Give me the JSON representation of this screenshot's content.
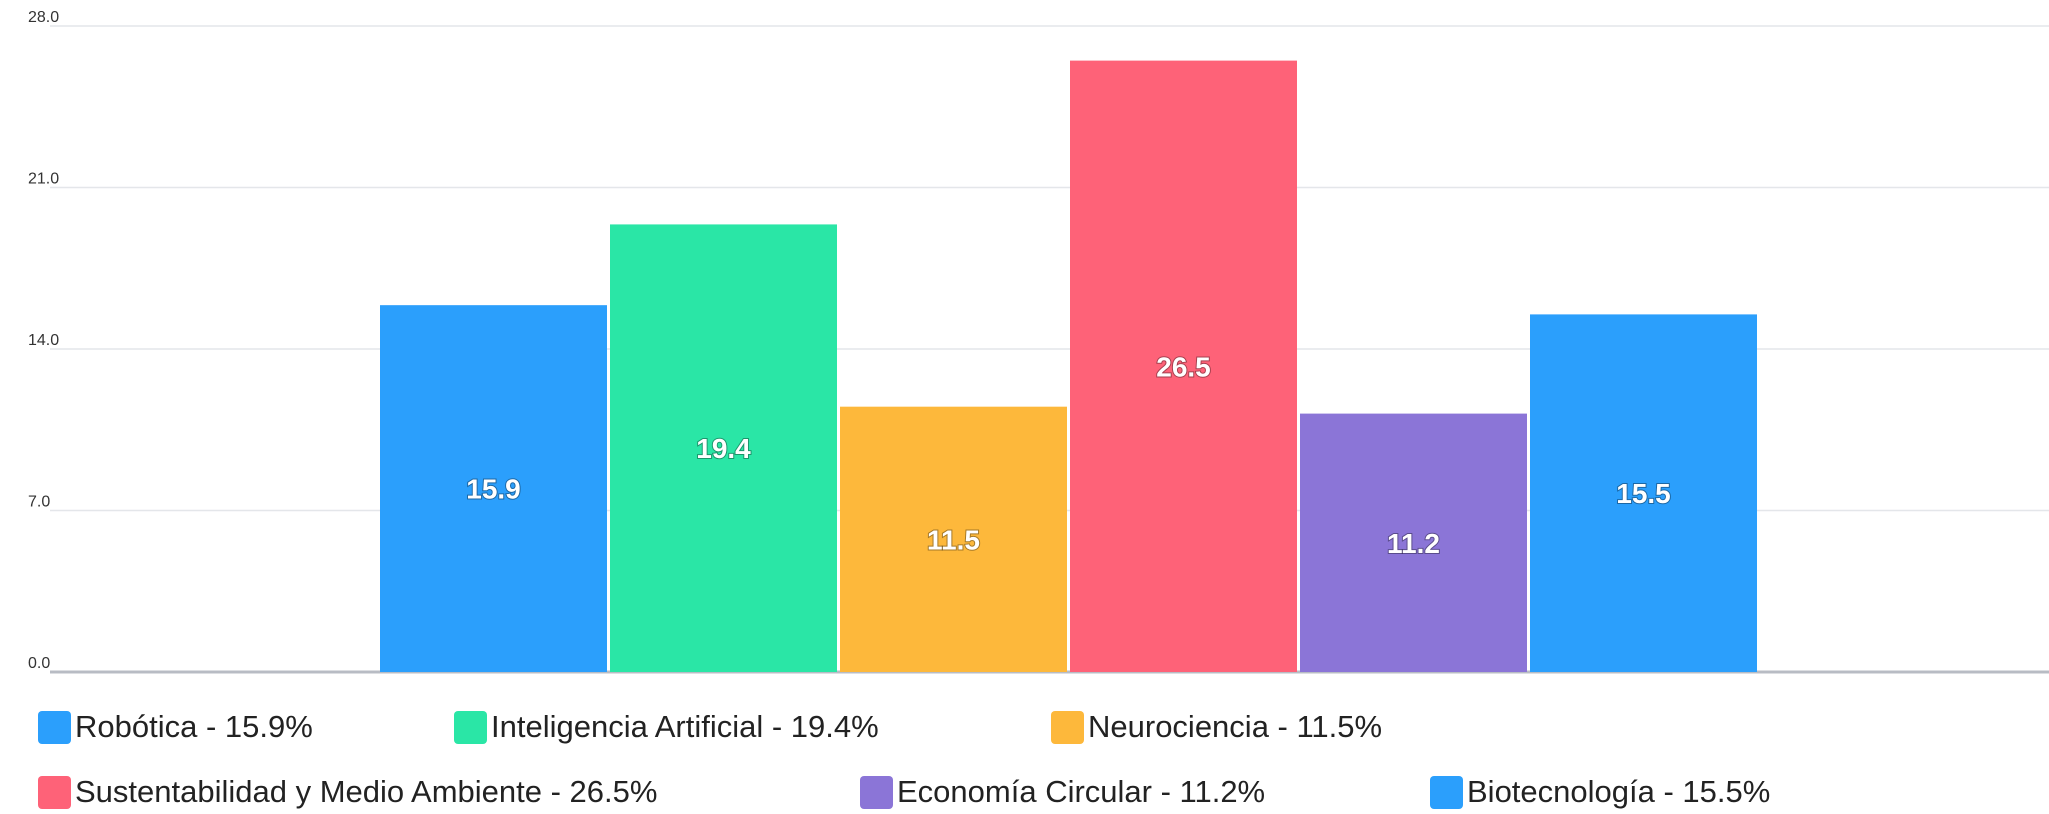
{
  "chart_data": {
    "type": "bar",
    "categories": [
      "Robótica",
      "Inteligencia Artificial",
      "Neurociencia",
      "Sustentabilidad y Medio Ambiente",
      "Economía Circular",
      "Biotecnología"
    ],
    "values": [
      15.9,
      19.4,
      11.5,
      26.5,
      11.2,
      15.5
    ],
    "value_labels": [
      "15.9",
      "19.4",
      "11.5",
      "26.5",
      "11.2",
      "15.5"
    ],
    "colors": [
      "#2b9ffc",
      "#2ae6a6",
      "#fdb83b",
      "#fe6278",
      "#8b75d7",
      "#2b9ffc"
    ],
    "ylim": [
      0,
      28
    ],
    "yticks": [
      "0.0",
      "7.0",
      "14.0",
      "21.0",
      "28.0"
    ],
    "grid": true,
    "legend_position": "bottom",
    "legend": [
      {
        "label": "Robótica - 15.9%",
        "color": "#2b9ffc"
      },
      {
        "label": "Inteligencia Artificial - 19.4%",
        "color": "#2ae6a6"
      },
      {
        "label": "Neurociencia - 11.5%",
        "color": "#fdb83b"
      },
      {
        "label": "Sustentabilidad y Medio Ambiente - 26.5%",
        "color": "#fe6278"
      },
      {
        "label": "Economía Circular - 11.2%",
        "color": "#8b75d7"
      },
      {
        "label": "Biotecnología - 15.5%",
        "color": "#2b9ffc"
      }
    ],
    "title": "",
    "xlabel": "",
    "ylabel": ""
  }
}
